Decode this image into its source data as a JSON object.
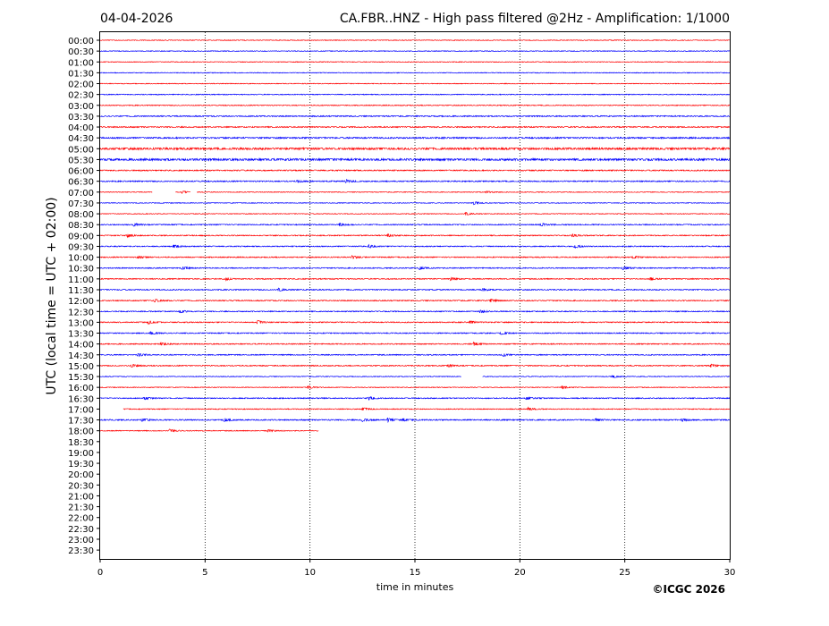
{
  "header": {
    "date": "04-04-2026",
    "title": "CA.FBR..HNZ - High pass filtered @2Hz - Amplification: 1/1000"
  },
  "footer": {
    "copyright": "©ICGC 2026"
  },
  "chart_data": {
    "type": "line",
    "title": "CA.FBR..HNZ - High pass filtered @2Hz - Amplification: 1/1000",
    "xlabel": "time in minutes",
    "ylabel": "UTC (local time = UTC + 02:00)",
    "xlim": [
      0,
      30
    ],
    "x_ticks": [
      0,
      5,
      10,
      15,
      20,
      25,
      30
    ],
    "x_tick_labels": [
      "0",
      "5",
      "10",
      "15",
      "20",
      "25",
      "30"
    ],
    "vertical_grid_at": [
      5,
      10,
      15,
      20,
      25
    ],
    "grid": "vertical dotted",
    "row_colors": [
      "#ff0000",
      "#0000ff"
    ],
    "rows": [
      "00:00",
      "00:30",
      "01:00",
      "01:30",
      "02:00",
      "02:30",
      "03:00",
      "03:30",
      "04:00",
      "04:30",
      "05:00",
      "05:30",
      "06:00",
      "06:30",
      "07:00",
      "07:30",
      "08:00",
      "08:30",
      "09:00",
      "09:30",
      "10:00",
      "10:30",
      "11:00",
      "11:30",
      "12:00",
      "12:30",
      "13:00",
      "13:30",
      "14:00",
      "14:30",
      "15:00",
      "15:30",
      "16:00",
      "16:30",
      "17:00",
      "17:30",
      "18:00",
      "18:30",
      "19:00",
      "19:30",
      "20:00",
      "20:30",
      "21:00",
      "21:30",
      "22:00",
      "22:30",
      "23:00",
      "23:30"
    ],
    "traces": [
      {
        "row": "00:00",
        "start": 0,
        "end": 30,
        "noise": 0.5,
        "events": []
      },
      {
        "row": "00:30",
        "start": 0,
        "end": 30,
        "noise": 0.5,
        "events": []
      },
      {
        "row": "01:00",
        "start": 0,
        "end": 30,
        "noise": 0.5,
        "events": []
      },
      {
        "row": "01:30",
        "start": 0,
        "end": 30,
        "noise": 0.5,
        "events": []
      },
      {
        "row": "02:00",
        "start": 0,
        "end": 30,
        "noise": 0.5,
        "events": []
      },
      {
        "row": "02:30",
        "start": 0,
        "end": 30,
        "noise": 0.6,
        "events": []
      },
      {
        "row": "03:00",
        "start": 0,
        "end": 30,
        "noise": 0.6,
        "events": []
      },
      {
        "row": "03:30",
        "start": 0,
        "end": 30,
        "noise": 0.8,
        "events": []
      },
      {
        "row": "04:00",
        "start": 0,
        "end": 30,
        "noise": 0.8,
        "events": []
      },
      {
        "row": "04:30",
        "start": 0,
        "end": 30,
        "noise": 1.0,
        "events": []
      },
      {
        "row": "05:00",
        "start": 0,
        "end": 30,
        "noise": 1.4,
        "events": []
      },
      {
        "row": "05:30",
        "start": 0,
        "end": 30,
        "noise": 1.4,
        "events": []
      },
      {
        "row": "06:00",
        "start": 0,
        "end": 30,
        "noise": 0.8,
        "events": []
      },
      {
        "row": "06:30",
        "start": 0,
        "end": 30,
        "noise": 0.8,
        "events": [
          [
            9.4,
            2.5
          ],
          [
            11.7,
            3.5
          ]
        ]
      },
      {
        "row": "07:00",
        "start": 0,
        "end": 30,
        "noise": 0.5,
        "gaps": [
          [
            2.5,
            3.6
          ],
          [
            4.3,
            4.6
          ]
        ],
        "events": [
          [
            3.9,
            2.5
          ],
          [
            18.4,
            2.5
          ]
        ]
      },
      {
        "row": "07:30",
        "start": 0,
        "end": 30,
        "noise": 0.5,
        "events": [
          [
            17.8,
            3.5
          ]
        ]
      },
      {
        "row": "08:00",
        "start": 0,
        "end": 30,
        "noise": 0.5,
        "events": [
          [
            17.4,
            3.5
          ]
        ]
      },
      {
        "row": "08:30",
        "start": 0,
        "end": 30,
        "noise": 0.7,
        "events": [
          [
            1.6,
            3.5
          ],
          [
            11.4,
            3.5
          ],
          [
            21.0,
            3.5
          ]
        ]
      },
      {
        "row": "09:00",
        "start": 0,
        "end": 30,
        "noise": 0.7,
        "events": [
          [
            1.3,
            3.5
          ],
          [
            13.7,
            3.5
          ],
          [
            22.5,
            3.5
          ]
        ]
      },
      {
        "row": "09:30",
        "start": 0,
        "end": 30,
        "noise": 0.7,
        "events": [
          [
            3.5,
            3.5
          ],
          [
            12.8,
            3.5
          ],
          [
            22.6,
            3.5
          ]
        ]
      },
      {
        "row": "10:00",
        "start": 0,
        "end": 30,
        "noise": 0.7,
        "events": [
          [
            1.8,
            3.5
          ],
          [
            12.0,
            3.5
          ],
          [
            25.4,
            3.5
          ]
        ]
      },
      {
        "row": "10:30",
        "start": 0,
        "end": 30,
        "noise": 0.7,
        "events": [
          [
            3.9,
            3.5
          ],
          [
            15.2,
            3.5
          ],
          [
            24.9,
            3.5
          ]
        ]
      },
      {
        "row": "11:00",
        "start": 0,
        "end": 30,
        "noise": 0.7,
        "events": [
          [
            6.0,
            3.5
          ],
          [
            16.7,
            3.5
          ],
          [
            26.2,
            3.5
          ]
        ]
      },
      {
        "row": "11:30",
        "start": 0,
        "end": 30,
        "noise": 0.7,
        "events": [
          [
            8.5,
            3.5
          ],
          [
            18.2,
            3.5
          ]
        ]
      },
      {
        "row": "12:00",
        "start": 0,
        "end": 30,
        "noise": 0.7,
        "events": [
          [
            2.6,
            3.5
          ],
          [
            18.6,
            3.5
          ]
        ]
      },
      {
        "row": "12:30",
        "start": 0,
        "end": 30,
        "noise": 0.7,
        "events": [
          [
            3.8,
            3.5
          ],
          [
            18.1,
            3.5
          ]
        ]
      },
      {
        "row": "13:00",
        "start": 0,
        "end": 30,
        "noise": 0.7,
        "events": [
          [
            2.3,
            3.5
          ],
          [
            7.5,
            4.0
          ],
          [
            17.6,
            3.5
          ]
        ]
      },
      {
        "row": "13:30",
        "start": 0,
        "end": 30,
        "noise": 0.7,
        "events": [
          [
            2.4,
            3.5
          ],
          [
            19.1,
            3.5
          ]
        ]
      },
      {
        "row": "14:00",
        "start": 0,
        "end": 30,
        "noise": 0.7,
        "events": [
          [
            2.9,
            3.5
          ],
          [
            17.8,
            3.5
          ]
        ]
      },
      {
        "row": "14:30",
        "start": 0,
        "end": 30,
        "noise": 0.7,
        "events": [
          [
            1.8,
            3.5
          ],
          [
            19.2,
            3.5
          ]
        ]
      },
      {
        "row": "15:00",
        "start": 0,
        "end": 30,
        "noise": 0.7,
        "events": [
          [
            1.5,
            3.5
          ],
          [
            16.6,
            3.5
          ],
          [
            29.1,
            3.5
          ]
        ]
      },
      {
        "row": "15:30",
        "start": 0,
        "end": 30,
        "noise": 0.5,
        "gaps": [
          [
            17.2,
            18.2
          ]
        ],
        "events": [
          [
            24.4,
            3.5
          ]
        ]
      },
      {
        "row": "16:00",
        "start": 0,
        "end": 30,
        "noise": 0.5,
        "events": [
          [
            9.9,
            3.5
          ],
          [
            22.0,
            3.5
          ]
        ]
      },
      {
        "row": "16:30",
        "start": 0,
        "end": 30,
        "noise": 0.7,
        "events": [
          [
            2.1,
            3.5
          ],
          [
            12.8,
            3.5
          ],
          [
            20.3,
            3.5
          ]
        ]
      },
      {
        "row": "17:00",
        "start": 1.1,
        "end": 30,
        "noise": 0.6,
        "events": [
          [
            12.5,
            3.5
          ],
          [
            20.4,
            3.5
          ]
        ]
      },
      {
        "row": "17:30",
        "start": 0,
        "end": 30,
        "noise": 0.8,
        "events": [
          [
            2.0,
            3.5
          ],
          [
            5.9,
            4.0
          ],
          [
            12.5,
            3.5
          ],
          [
            13.7,
            4.0
          ],
          [
            14.4,
            3.5
          ],
          [
            23.6,
            3.0
          ],
          [
            27.7,
            3.0
          ]
        ]
      },
      {
        "row": "18:00",
        "start": 0,
        "end": 10.4,
        "noise": 0.6,
        "events": [
          [
            3.3,
            3.5
          ],
          [
            8.0,
            2.5
          ]
        ]
      }
    ]
  }
}
